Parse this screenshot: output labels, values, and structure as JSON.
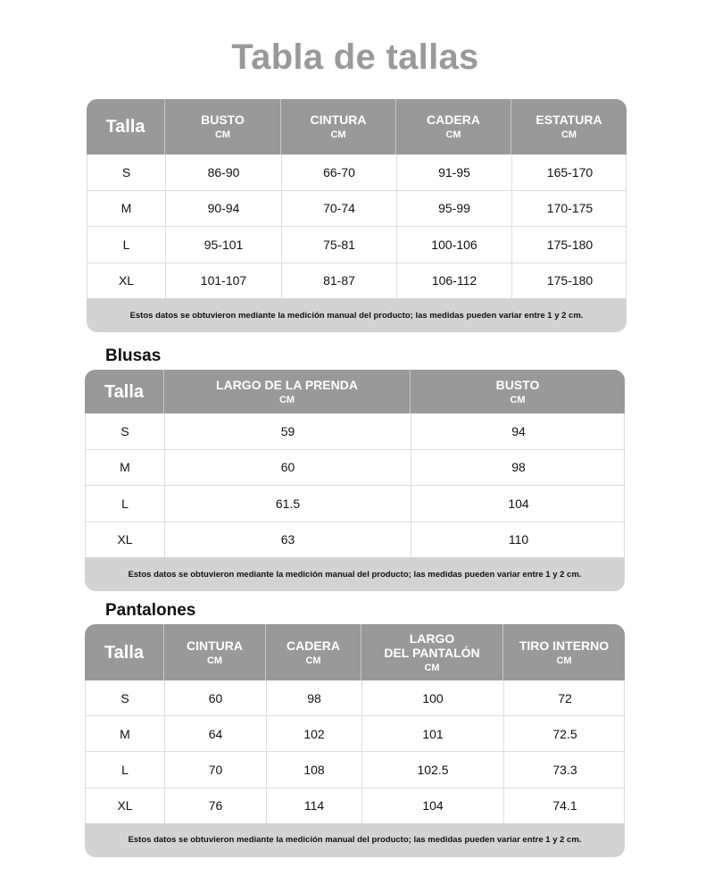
{
  "title": "Tabla de tallas",
  "note": "Estos datos se obtuvieron mediante la medición manual del producto; las medidas pueden variar entre 1 y 2 cm.",
  "tables": [
    {
      "section": "",
      "columns": [
        {
          "label": "Talla",
          "unit": ""
        },
        {
          "label": "BUSTO",
          "unit": "CM"
        },
        {
          "label": "CINTURA",
          "unit": "CM"
        },
        {
          "label": "CADERA",
          "unit": "CM"
        },
        {
          "label": "ESTATURA",
          "unit": "CM"
        }
      ],
      "rows": [
        [
          "S",
          "86-90",
          "66-70",
          "91-95",
          "165-170"
        ],
        [
          "M",
          "90-94",
          "70-74",
          "95-99",
          "170-175"
        ],
        [
          "L",
          "95-101",
          "75-81",
          "100-106",
          "175-180"
        ],
        [
          "XL",
          "101-107",
          "81-87",
          "106-112",
          "175-180"
        ]
      ]
    },
    {
      "section": "Blusas",
      "columns": [
        {
          "label": "Talla",
          "unit": ""
        },
        {
          "label": "LARGO DE LA PRENDA",
          "unit": "CM"
        },
        {
          "label": "BUSTO",
          "unit": "CM"
        }
      ],
      "rows": [
        [
          "S",
          "59",
          "94"
        ],
        [
          "M",
          "60",
          "98"
        ],
        [
          "L",
          "61.5",
          "104"
        ],
        [
          "XL",
          "63",
          "110"
        ]
      ]
    },
    {
      "section": "Pantalones",
      "columns": [
        {
          "label": "Talla",
          "unit": ""
        },
        {
          "label": "CINTURA",
          "unit": "CM"
        },
        {
          "label": "CADERA",
          "unit": "CM"
        },
        {
          "label": "LARGO\nDEL PANTALÓN",
          "unit": "CM"
        },
        {
          "label": "TIRO INTERNO",
          "unit": "CM"
        }
      ],
      "rows": [
        [
          "S",
          "60",
          "98",
          "100",
          "72"
        ],
        [
          "M",
          "64",
          "102",
          "101",
          "72.5"
        ],
        [
          "L",
          "70",
          "108",
          "102.5",
          "73.3"
        ],
        [
          "XL",
          "76",
          "114",
          "104",
          "74.1"
        ]
      ]
    }
  ]
}
